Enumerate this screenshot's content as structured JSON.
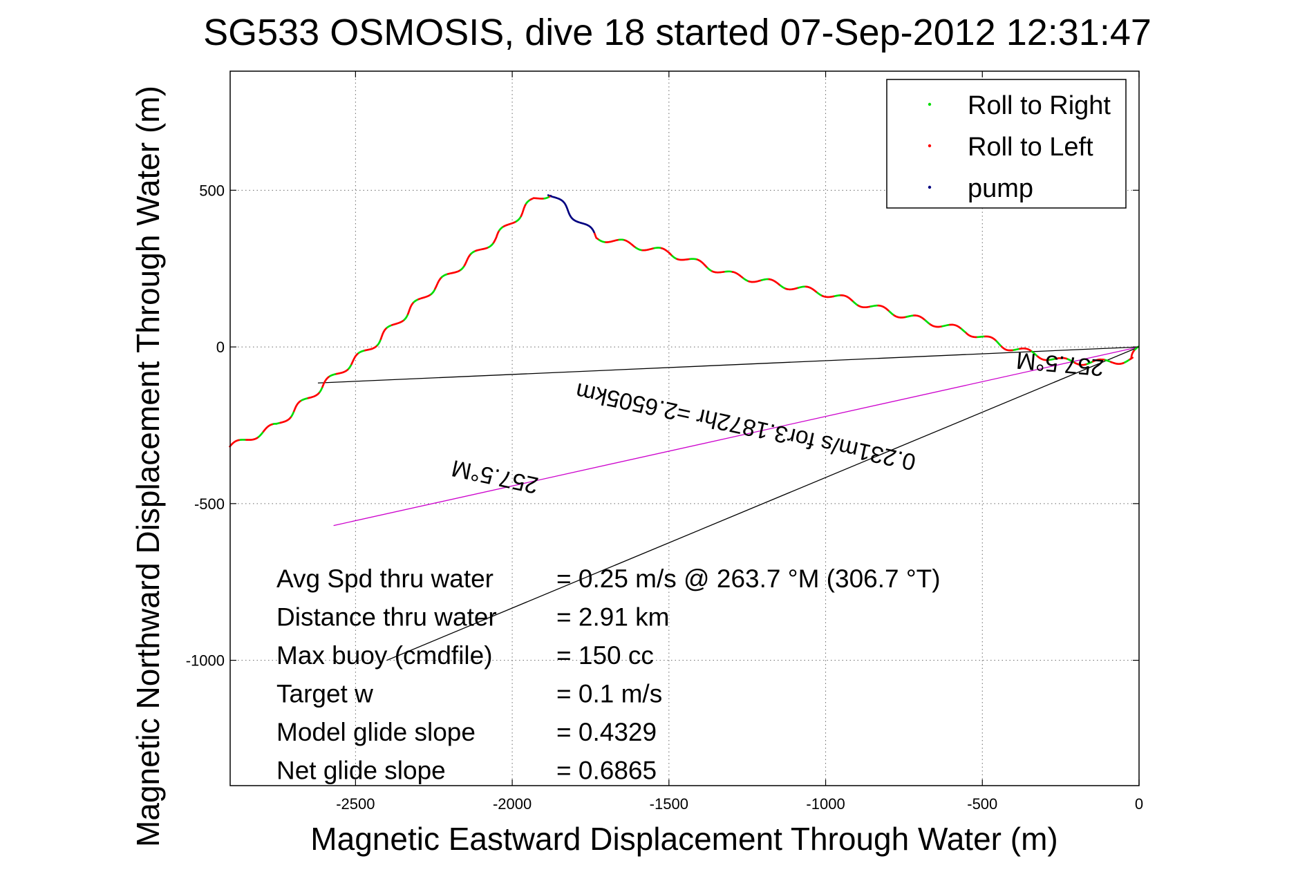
{
  "chart_data": {
    "type": "line",
    "title": "SG533 OSMOSIS, dive 18 started 07-Sep-2012 12:31:47",
    "xlabel": "Magnetic Eastward Displacement Through Water (m)",
    "ylabel": "Magnetic Northward Displacement Through Water (m)",
    "xlim": [
      -2900,
      0
    ],
    "ylim": [
      -1400,
      880
    ],
    "xticks": [
      -2500,
      -2000,
      -1500,
      -1000,
      -500,
      0
    ],
    "yticks": [
      -1000,
      -500,
      0,
      500
    ],
    "grid": true,
    "legend_position": "top-right",
    "legend": [
      {
        "label": "Roll to Right",
        "color": "#00dd00"
      },
      {
        "label": "Roll to Left",
        "color": "#ff0000"
      },
      {
        "label": "pump",
        "color": "#000080"
      }
    ],
    "track_keypoints": [
      {
        "x": 0,
        "y": 0
      },
      {
        "x": -20,
        "y": -40
      },
      {
        "x": -120,
        "y": -50
      },
      {
        "x": -250,
        "y": -45
      },
      {
        "x": -420,
        "y": 0
      },
      {
        "x": -550,
        "y": 50
      },
      {
        "x": -750,
        "y": 100
      },
      {
        "x": -1000,
        "y": 170
      },
      {
        "x": -1300,
        "y": 230
      },
      {
        "x": -1500,
        "y": 300
      },
      {
        "x": -1730,
        "y": 350
      },
      {
        "x": -1880,
        "y": 490
      },
      {
        "x": -1930,
        "y": 470
      },
      {
        "x": -2050,
        "y": 350
      },
      {
        "x": -2250,
        "y": 190
      },
      {
        "x": -2450,
        "y": 0
      },
      {
        "x": -2600,
        "y": -120
      },
      {
        "x": -2750,
        "y": -250
      },
      {
        "x": -2900,
        "y": -320
      }
    ],
    "pump_segments": [
      [
        -1880,
        -1740
      ]
    ],
    "reference_lines": [
      {
        "from": [
          0,
          0
        ],
        "to": [
          -2620,
          -115
        ],
        "color": "#000000"
      },
      {
        "from": [
          0,
          0
        ],
        "to": [
          -2570,
          -570
        ],
        "color": "#cc00cc"
      },
      {
        "from": [
          0,
          0
        ],
        "to": [
          -2400,
          -1000
        ],
        "color": "#000000"
      }
    ],
    "rotated_labels": [
      {
        "text": "257.5°M",
        "x": -250,
        "y": -30,
        "angle": 185
      },
      {
        "text": "0.231m/s for3.1872hr =2.6505km",
        "x": -1250,
        "y": -230,
        "angle": 192
      },
      {
        "text": "257.5°M",
        "x": -2050,
        "y": -390,
        "angle": 192
      }
    ],
    "annotations": [
      {
        "label": "Avg Spd thru water",
        "value": "=  0.25 m/s @ 263.7 °M (306.7 °T)"
      },
      {
        "label": "Distance thru water",
        "value": "=  2.91 km"
      },
      {
        "label": "Max buoy (cmdfile)",
        "value": "= 150 cc"
      },
      {
        "label": "Target w",
        "value": "= 0.1 m/s"
      },
      {
        "label": "Model glide slope",
        "value": "= 0.4329"
      },
      {
        "label": "Net glide slope",
        "value": "= 0.6865"
      }
    ]
  }
}
